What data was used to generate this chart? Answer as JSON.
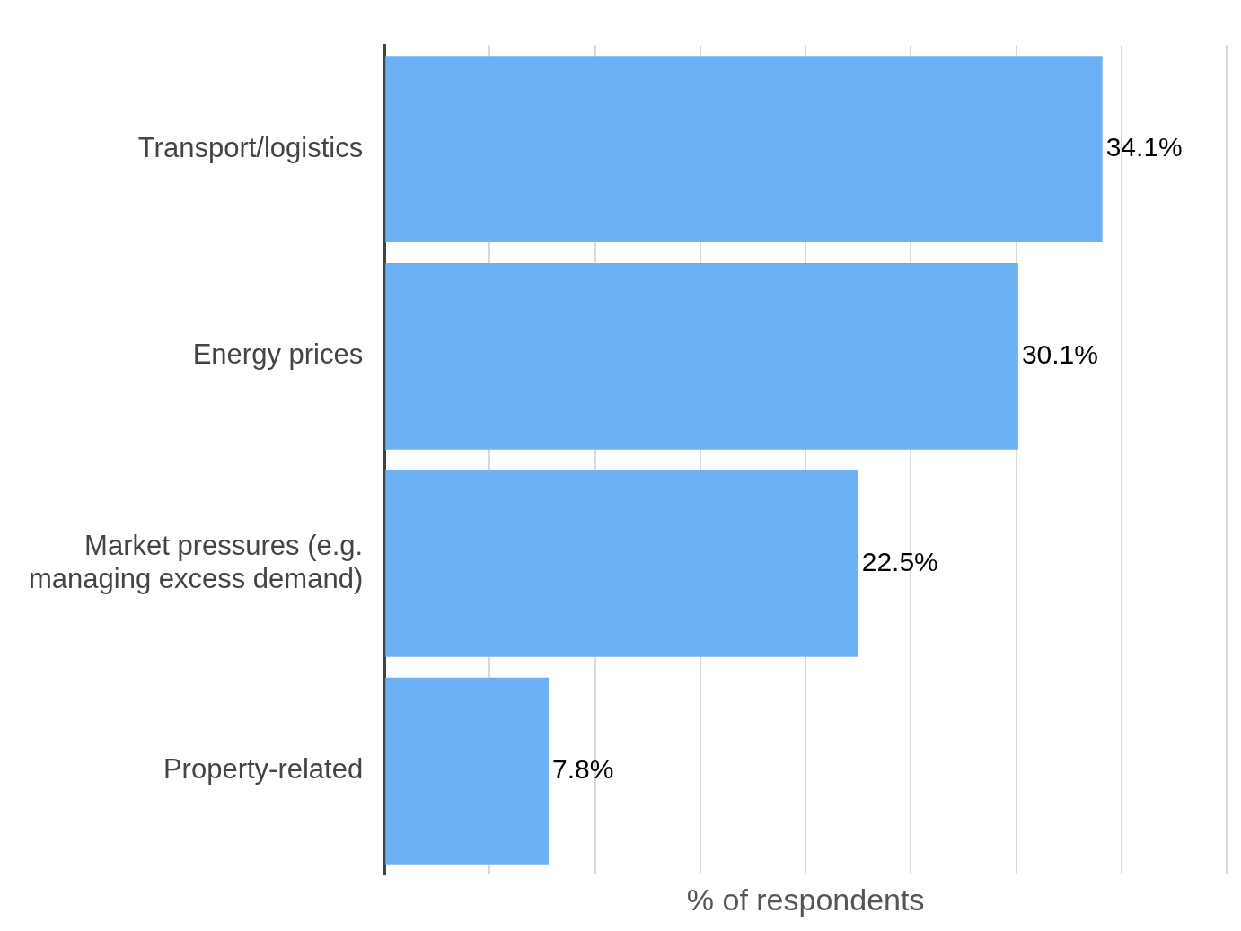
{
  "chart_data": {
    "type": "bar",
    "orientation": "horizontal",
    "xlabel": "% of respondents",
    "categories": [
      "Transport/logistics",
      "Energy prices",
      "Market pressures (e.g. managing excess demand)",
      "Property-related"
    ],
    "values": [
      34.1,
      30.1,
      22.5,
      7.8
    ],
    "value_labels": [
      "34.1%",
      "30.1%",
      "22.5%",
      "7.8%"
    ],
    "color": "#6cb1f6",
    "xlim": [
      0,
      40
    ],
    "xticks": [
      {
        "value": 0,
        "label": null
      },
      {
        "value": 5,
        "label": null
      },
      {
        "value": 10,
        "label": null
      },
      {
        "value": 15,
        "label": null
      },
      {
        "value": 20,
        "label": null
      },
      {
        "value": 25,
        "label": null
      },
      {
        "value": 30,
        "label": null
      },
      {
        "value": 35,
        "label": null
      },
      {
        "value": 40,
        "label": null
      }
    ],
    "grid": "x",
    "tick_labels": "y",
    "legend": false
  }
}
